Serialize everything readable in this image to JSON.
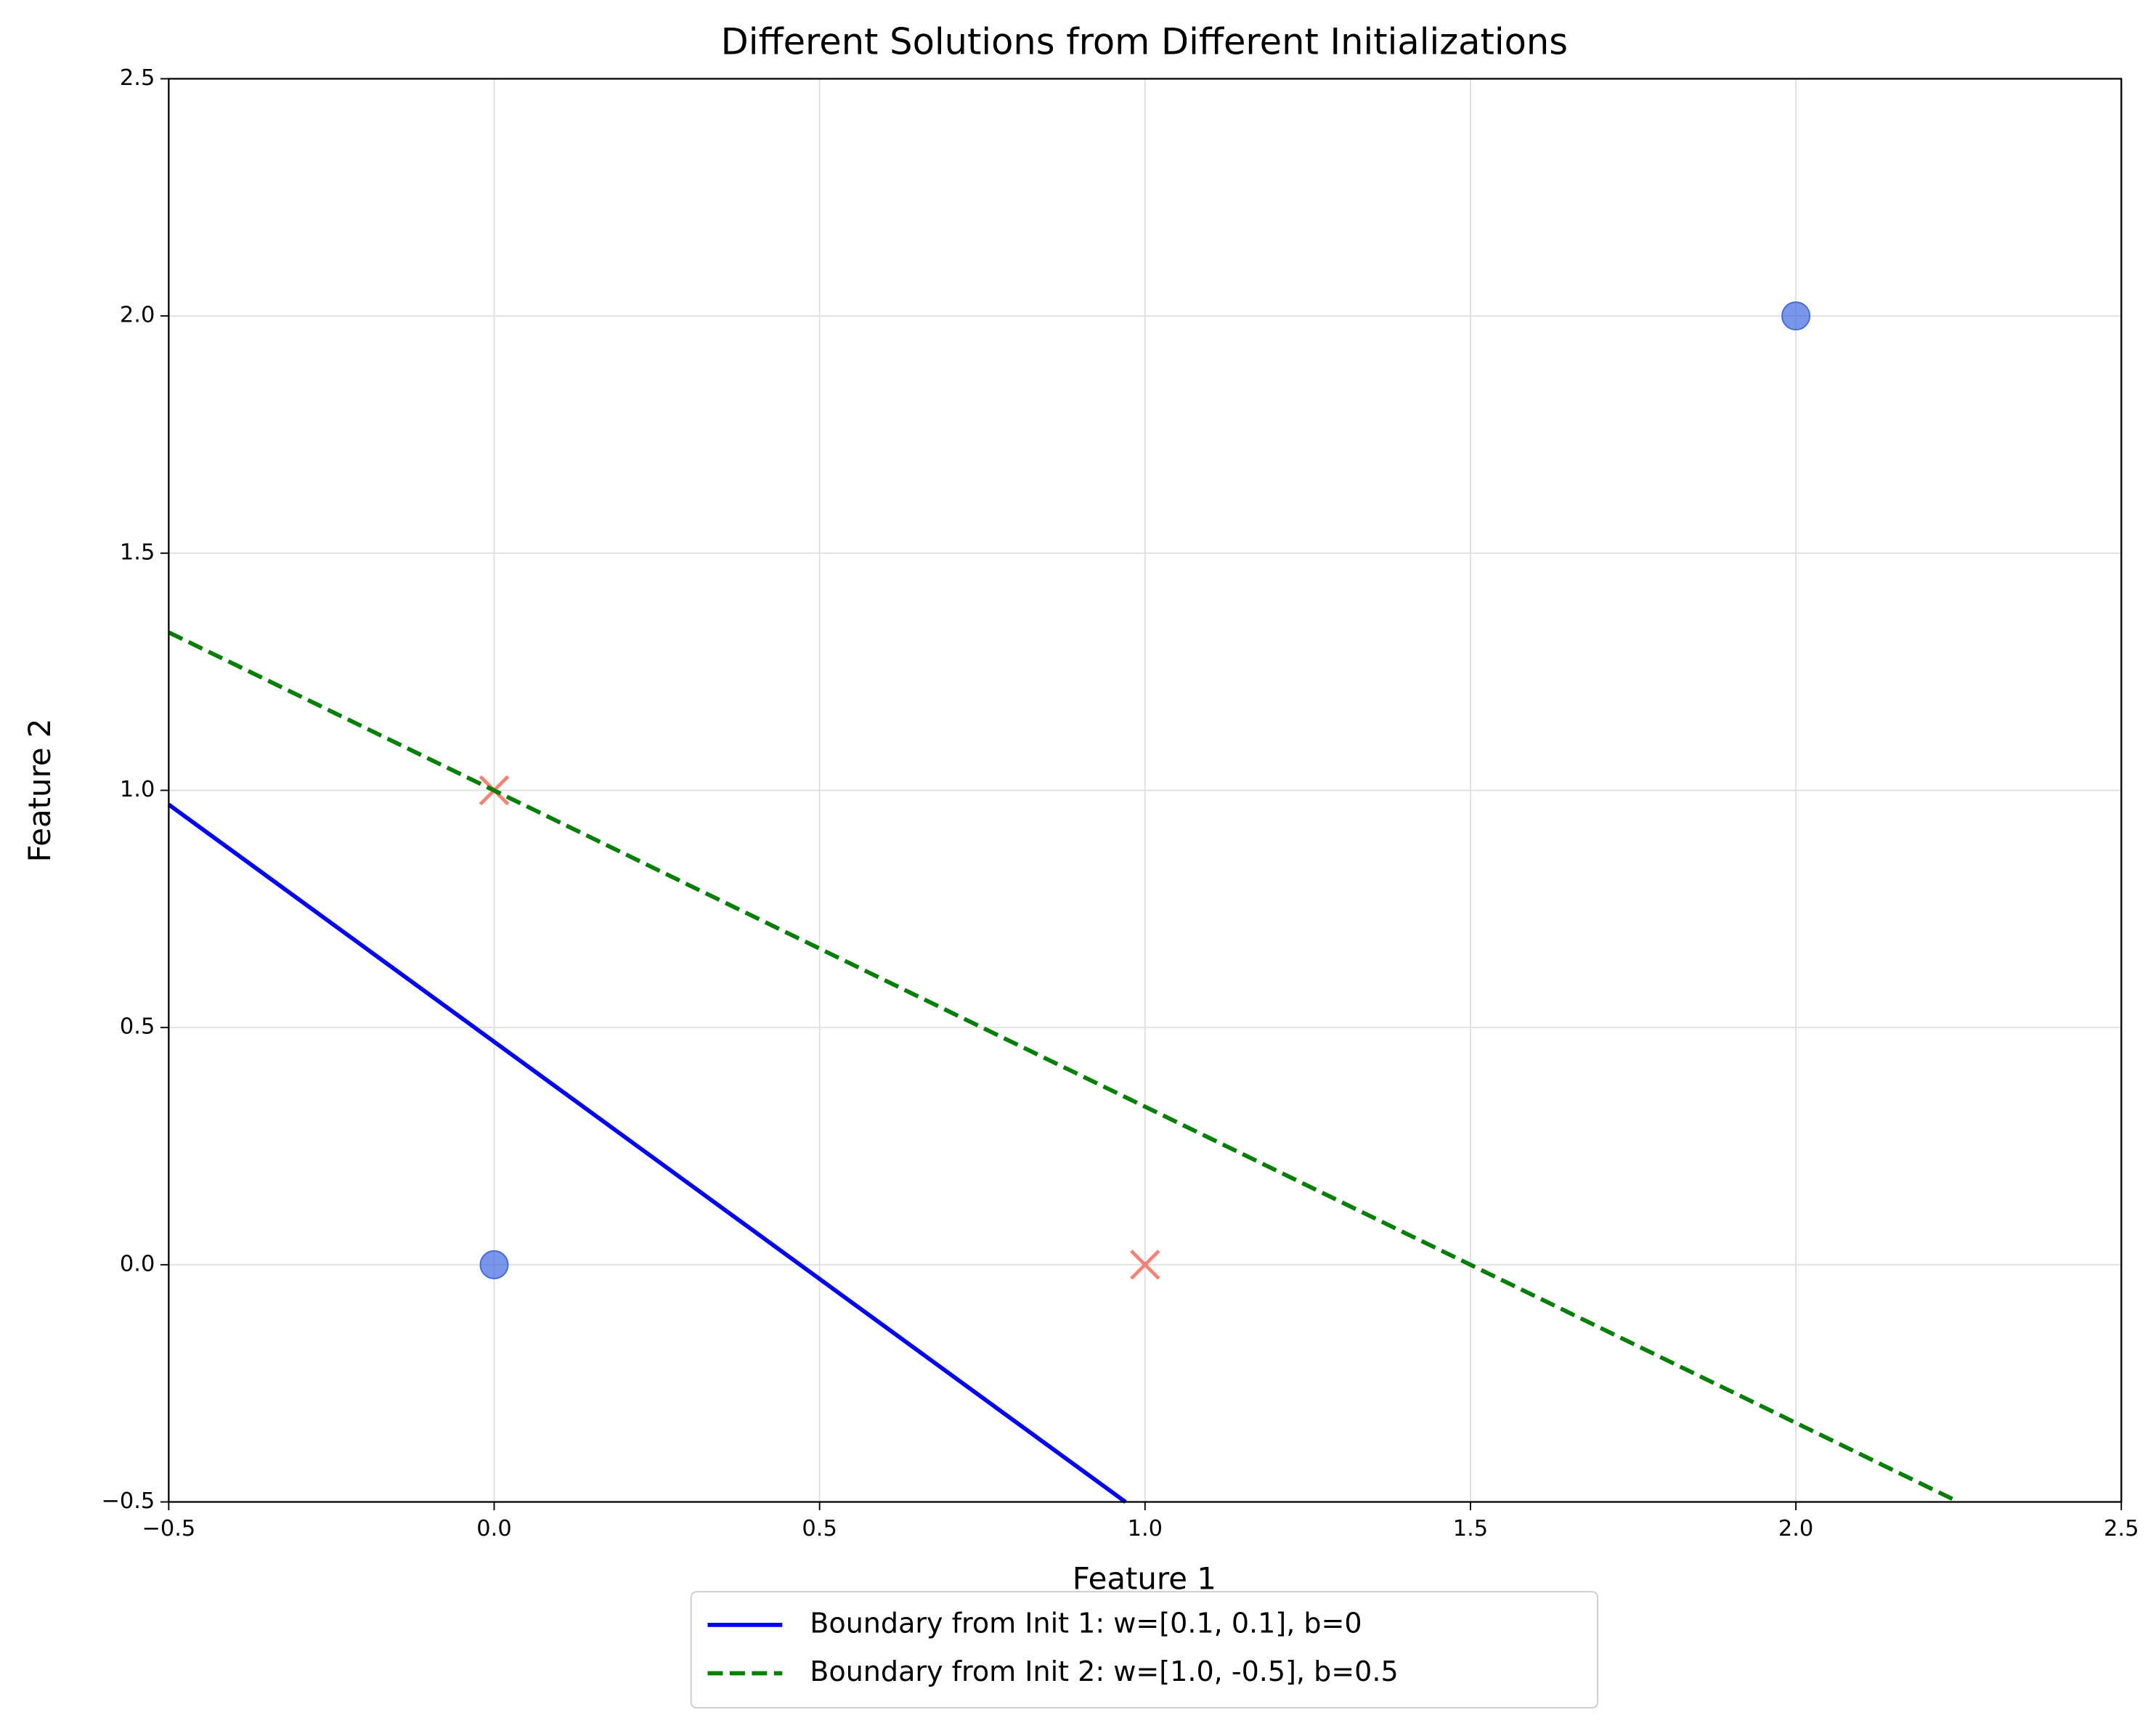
{
  "chart_data": {
    "type": "line",
    "title": "Different Solutions from Different Initializations",
    "xlabel": "Feature 1",
    "ylabel": "Feature 2",
    "xlim": [
      -0.5,
      2.5
    ],
    "ylim": [
      -0.5,
      2.5
    ],
    "xticks": [
      {
        "value": -0.5,
        "label": "−0.5"
      },
      {
        "value": 0,
        "label": "0.0"
      },
      {
        "value": 0.5,
        "label": "0.5"
      },
      {
        "value": 1,
        "label": "1.0"
      },
      {
        "value": 1.5,
        "label": "1.5"
      },
      {
        "value": 2,
        "label": "2.0"
      },
      {
        "value": 2.5,
        "label": "2.5"
      }
    ],
    "yticks": [
      {
        "value": -0.5,
        "label": "−0.5"
      },
      {
        "value": 0,
        "label": "0.0"
      },
      {
        "value": 0.5,
        "label": "0.5"
      },
      {
        "value": 1,
        "label": "1.0"
      },
      {
        "value": 1.5,
        "label": "1.5"
      },
      {
        "value": 2,
        "label": "2.0"
      },
      {
        "value": 2.5,
        "label": "2.5"
      }
    ],
    "grid": true,
    "legend": "lower center",
    "series": [
      {
        "type": "scatter",
        "marker": "o",
        "color": "#4169e1",
        "x": [
          0,
          2
        ],
        "values": [
          0,
          2
        ]
      },
      {
        "type": "scatter",
        "marker": "x",
        "color": "#fa8072",
        "x": [
          0,
          1
        ],
        "values": [
          1,
          0
        ]
      },
      {
        "type": "line",
        "name": "Boundary from Init 1: w=[0.1, 0.1], b=0",
        "color": "#0000ff",
        "dash": false,
        "x": [
          -0.5,
          0.97
        ],
        "values": [
          0.97,
          -0.5
        ]
      },
      {
        "type": "line",
        "name": "Boundary from Init 2: w=[1.0, -0.5], b=0.5",
        "color": "#008000",
        "dash": true,
        "x": [
          -0.5,
          2.25
        ],
        "values": [
          1.333,
          -0.5
        ]
      }
    ]
  }
}
